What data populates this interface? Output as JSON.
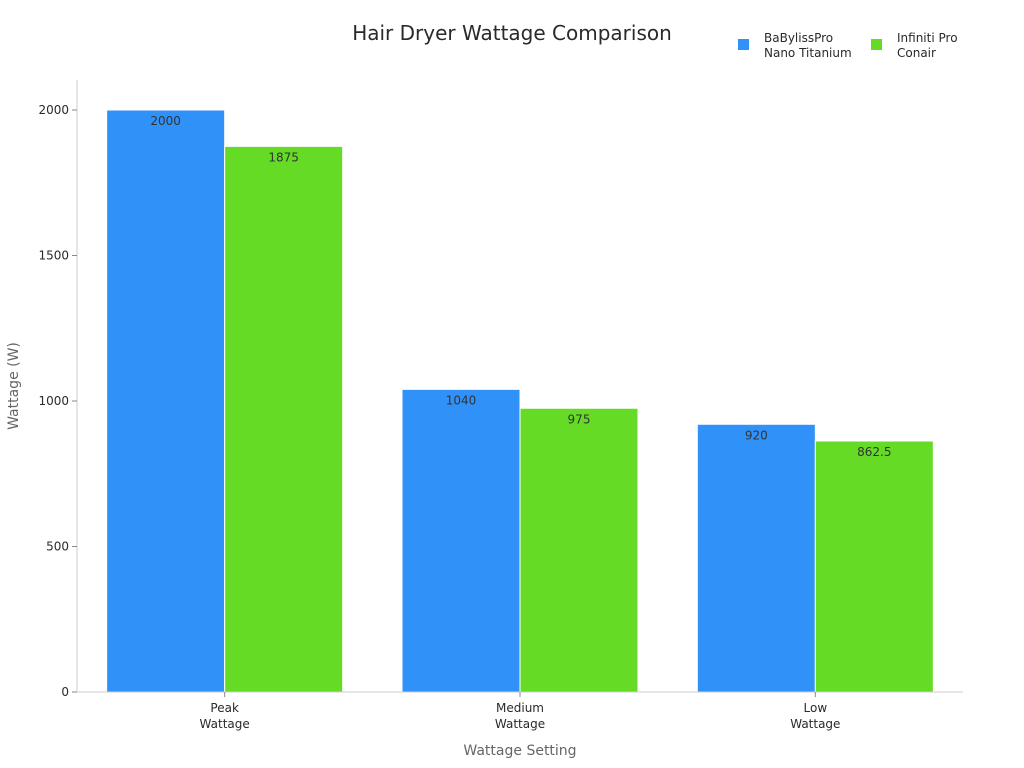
{
  "chart_data": {
    "type": "bar",
    "title": "Hair Dryer Wattage Comparison",
    "xlabel": "Wattage Setting",
    "ylabel": "Wattage (W)",
    "categories": [
      [
        "Peak",
        "Wattage"
      ],
      [
        "Medium",
        "Wattage"
      ],
      [
        "Low",
        "Wattage"
      ]
    ],
    "series": [
      {
        "name": [
          "BaBylissPro",
          "Nano Titanium"
        ],
        "color": "#3092f8",
        "values": [
          2000,
          1040,
          920
        ],
        "labels": [
          "2000",
          "1040",
          "920"
        ]
      },
      {
        "name": [
          "Infiniti Pro",
          "Conair"
        ],
        "color": "#66db26",
        "values": [
          1875,
          975,
          862.5
        ],
        "labels": [
          "1875",
          "975",
          "862.5"
        ]
      }
    ],
    "ylim": [
      0,
      2100
    ],
    "yticks": [
      0,
      500,
      1000,
      1500,
      2000
    ],
    "ytick_labels": [
      "0",
      "500",
      "1000",
      "1500",
      "2000"
    ],
    "grid": false,
    "legend_position": "top-right",
    "axis_color": "#cccccc"
  }
}
